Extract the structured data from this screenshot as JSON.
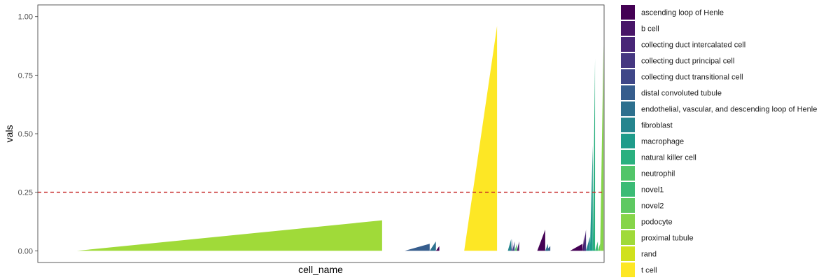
{
  "chart_data": {
    "type": "bar",
    "title": "",
    "xlabel": "cell_name",
    "ylabel": "vals",
    "ylim": [
      -0.05,
      1.05
    ],
    "y_ticks": [
      "0.00",
      "0.25",
      "0.50",
      "0.75",
      "1.00"
    ],
    "y_tick_values": [
      0,
      0.25,
      0.5,
      0.75,
      1.0
    ],
    "x_tick_labels_shown": false,
    "grid": false,
    "legend_position": "right",
    "reference_line": {
      "y": 0.25,
      "style": "dashed",
      "color": "#c62828"
    },
    "series": [
      {
        "name": "ascending loop of Henle",
        "color": "#440154",
        "blocks": [
          {
            "start": 0.703,
            "end": 0.709,
            "min": 0.0,
            "max": 0.02
          },
          {
            "start": 0.882,
            "end": 0.896,
            "min": 0.0,
            "max": 0.09
          },
          {
            "start": 0.94,
            "end": 0.962,
            "min": 0.0,
            "max": 0.03
          }
        ]
      },
      {
        "name": "b cell",
        "color": "#481568",
        "blocks": [
          {
            "start": 0.846,
            "end": 0.85,
            "min": 0.0,
            "max": 0.04
          },
          {
            "start": 0.962,
            "end": 0.965,
            "min": 0.0,
            "max": 0.07
          }
        ]
      },
      {
        "name": "collecting duct intercalated cell",
        "color": "#482677",
        "blocks": [
          {
            "start": 0.963,
            "end": 0.968,
            "min": 0.0,
            "max": 0.09
          }
        ]
      },
      {
        "name": "collecting duct principal cell",
        "color": "#453781",
        "blocks": [
          {
            "start": 0.836,
            "end": 0.838,
            "min": 0.0,
            "max": 0.05
          },
          {
            "start": 0.965,
            "end": 0.968,
            "min": 0.0,
            "max": 0.05
          }
        ]
      },
      {
        "name": "collecting duct transitional cell",
        "color": "#3f4788",
        "blocks": [
          {
            "start": 0.838,
            "end": 0.842,
            "min": 0.0,
            "max": 0.04
          }
        ]
      },
      {
        "name": "distal convoluted tubule",
        "color": "#365d8d",
        "blocks": [
          {
            "start": 0.648,
            "end": 0.692,
            "min": 0.0,
            "max": 0.03
          },
          {
            "start": 0.897,
            "end": 0.905,
            "min": 0.0,
            "max": 0.02
          }
        ]
      },
      {
        "name": "endothelial, vascular, and descending loop of Henle",
        "color": "#2d708e",
        "blocks": [
          {
            "start": 0.692,
            "end": 0.703,
            "min": 0.0,
            "max": 0.04
          },
          {
            "start": 0.896,
            "end": 0.901,
            "min": 0.0,
            "max": 0.03
          }
        ]
      },
      {
        "name": "fibroblast",
        "color": "#25858e",
        "blocks": [
          {
            "start": 0.83,
            "end": 0.836,
            "min": 0.0,
            "max": 0.05
          },
          {
            "start": 0.968,
            "end": 0.975,
            "min": 0.0,
            "max": 0.06
          }
        ]
      },
      {
        "name": "macrophage",
        "color": "#1e9b8a",
        "blocks": [
          {
            "start": 0.975,
            "end": 0.98,
            "min": 0.0,
            "max": 0.45
          }
        ]
      },
      {
        "name": "natural killer cell",
        "color": "#2ab07f",
        "blocks": [
          {
            "start": 0.98,
            "end": 0.984,
            "min": 0.0,
            "max": 0.82
          }
        ]
      },
      {
        "name": "neutrophil",
        "color": "#52c569",
        "blocks": [
          {
            "start": 0.842,
            "end": 0.846,
            "min": 0.0,
            "max": 0.03
          }
        ]
      },
      {
        "name": "novel1",
        "color": "#3bbb75",
        "blocks": [
          {
            "start": 0.984,
            "end": 0.989,
            "min": 0.0,
            "max": 0.04
          }
        ]
      },
      {
        "name": "novel2",
        "color": "#5ec962",
        "blocks": [
          {
            "start": 0.989,
            "end": 0.993,
            "min": 0.0,
            "max": 0.03
          }
        ]
      },
      {
        "name": "podocyte",
        "color": "#86d549",
        "blocks": [
          {
            "start": 0.993,
            "end": 0.999,
            "min": 0.0,
            "max": 0.88
          }
        ]
      },
      {
        "name": "proximal tubule",
        "color": "#a0da39",
        "blocks": [
          {
            "start": 0.069,
            "end": 0.608,
            "min": 0.0,
            "max": 0.13
          }
        ]
      },
      {
        "name": "rand",
        "color": "#d0e11c",
        "blocks": []
      },
      {
        "name": "t cell",
        "color": "#fde725",
        "blocks": [
          {
            "start": 0.753,
            "end": 0.811,
            "min": 0.0,
            "max": 0.96
          }
        ]
      }
    ]
  }
}
